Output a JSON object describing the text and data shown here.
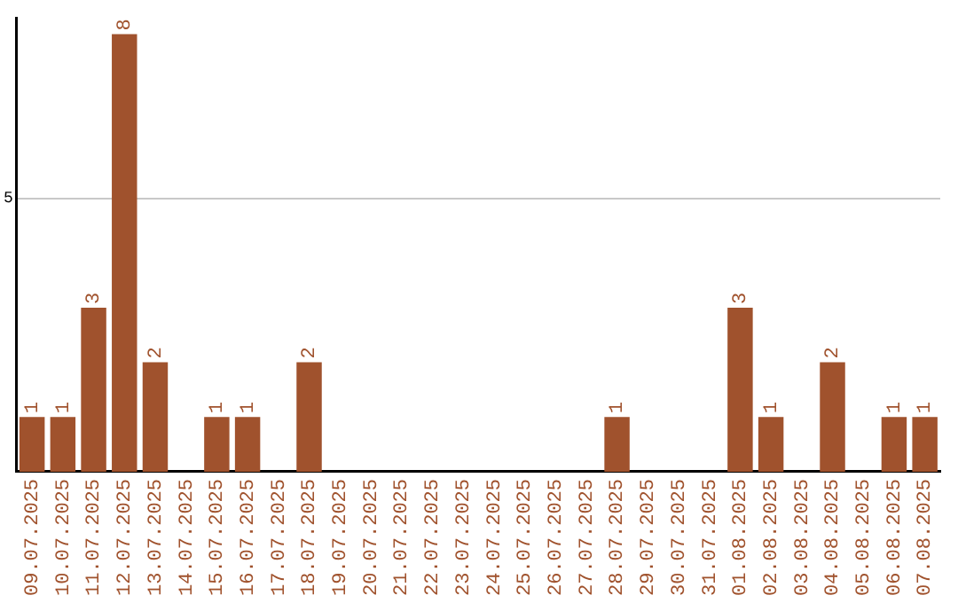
{
  "chart_data": {
    "type": "bar",
    "categories": [
      "09.07.2025",
      "10.07.2025",
      "11.07.2025",
      "12.07.2025",
      "13.07.2025",
      "14.07.2025",
      "15.07.2025",
      "16.07.2025",
      "17.07.2025",
      "18.07.2025",
      "19.07.2025",
      "20.07.2025",
      "21.07.2025",
      "22.07.2025",
      "23.07.2025",
      "24.07.2025",
      "25.07.2025",
      "26.07.2025",
      "27.07.2025",
      "28.07.2025",
      "29.07.2025",
      "30.07.2025",
      "31.07.2025",
      "01.08.2025",
      "02.08.2025",
      "03.08.2025",
      "04.08.2025",
      "05.08.2025",
      "06.08.2025",
      "07.08.2025"
    ],
    "values": [
      1,
      1,
      3,
      8,
      2,
      0,
      1,
      1,
      0,
      2,
      0,
      0,
      0,
      0,
      0,
      0,
      0,
      0,
      0,
      1,
      0,
      0,
      0,
      3,
      1,
      0,
      2,
      0,
      1,
      1
    ],
    "value_labels": [
      "1",
      "1",
      "3",
      "8",
      "2",
      null,
      "1",
      "1",
      null,
      "2",
      null,
      null,
      null,
      null,
      null,
      null,
      null,
      null,
      null,
      "1",
      null,
      null,
      null,
      "3",
      "1",
      null,
      "2",
      null,
      "1",
      "1"
    ],
    "color": "#a0522d",
    "ylim": [
      0,
      8.3
    ],
    "yticks": [
      5
    ],
    "grid": "y",
    "legend": false
  }
}
